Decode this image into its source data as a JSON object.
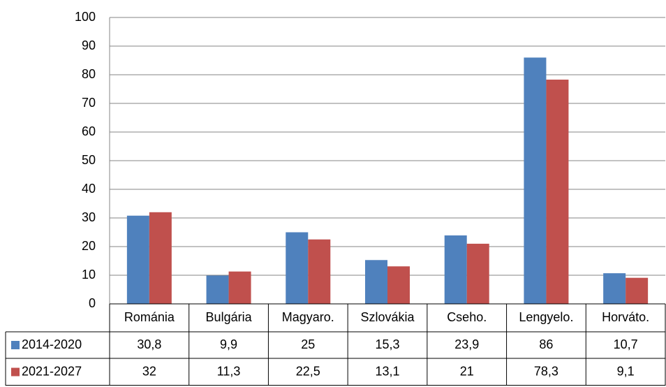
{
  "chart_data": {
    "type": "bar",
    "categories": [
      "Románia",
      "Bulgária",
      "Magyaro.",
      "Szlovákia",
      "Cseho.",
      "Lengyelo.",
      "Horváto."
    ],
    "series": [
      {
        "name": "2014-2020",
        "color": "#4f81bd",
        "values": [
          30.8,
          9.9,
          25,
          15.3,
          23.9,
          86,
          10.7
        ],
        "value_labels": [
          "30,8",
          "9,9",
          "25",
          "15,3",
          "23,9",
          "86",
          "10,7"
        ]
      },
      {
        "name": "2021-2027",
        "color": "#c0504d",
        "values": [
          32,
          11.3,
          22.5,
          13.1,
          21,
          78.3,
          9.1
        ],
        "value_labels": [
          "32",
          "11,3",
          "22,5",
          "13,1",
          "21",
          "78,3",
          "9,1"
        ]
      }
    ],
    "ylim": [
      0,
      100
    ],
    "yticks": [
      0,
      10,
      20,
      30,
      40,
      50,
      60,
      70,
      80,
      90,
      100
    ],
    "grid": true
  }
}
